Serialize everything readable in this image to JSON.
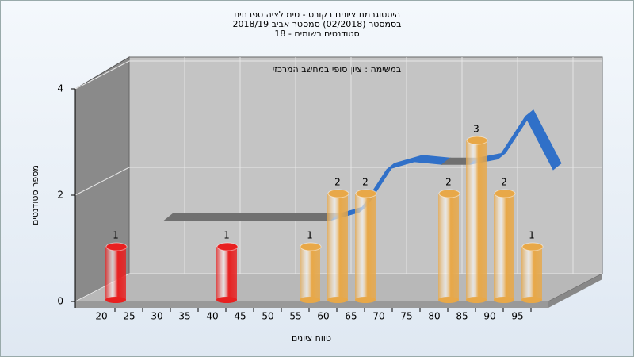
{
  "chart_data": {
    "type": "bar",
    "title": [
      "היסטוגרמת ציונים בקורס - סימולציה ספרתית",
      "בסמסטר  (02/2018)  סמסטר אביב 2018/19",
      "סטודנטים רשומים - 18"
    ],
    "subtitle": "במשימה : ציון סופי במחשב המרכזי",
    "x_label": "טווח ציונים",
    "y_label": "מספר סטודנטים",
    "categories": [
      "20",
      "25",
      "30",
      "35",
      "40",
      "45",
      "50",
      "55",
      "60",
      "65",
      "70",
      "75",
      "80",
      "85",
      "90",
      "95"
    ],
    "values": [
      1,
      0,
      0,
      0,
      1,
      0,
      0,
      1,
      2,
      2,
      0,
      0,
      2,
      3,
      2,
      1
    ],
    "colors": [
      "#e82020",
      "#e82020",
      "#e82020",
      "#e82020",
      "#e82020",
      "#e82020",
      "#e82020",
      "#e8a848",
      "#e8a848",
      "#e8a848",
      "#e8a848",
      "#e8a848",
      "#e8a848",
      "#e8a848",
      "#e8a848",
      "#e8a848"
    ],
    "curve": {
      "values": [
        null,
        1.35,
        1.35,
        1.35,
        1.35,
        1.35,
        1.35,
        1.35,
        1.5,
        2.3,
        2.45,
        2.4,
        2.4,
        2.5,
        3.3,
        2.3
      ],
      "color": "#3070c8",
      "flat_color": "#707070"
    },
    "ylim": [
      0,
      4
    ],
    "yticks": [
      0,
      2,
      4
    ],
    "grid": true
  }
}
